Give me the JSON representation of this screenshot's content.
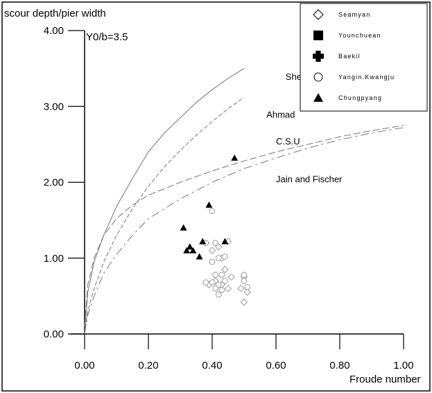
{
  "chart_data": {
    "type": "scatter",
    "ylabel": "scour depth/pier width",
    "xlabel": "Froude number",
    "annotation": "Y0/b=3.5",
    "xlim": [
      0,
      1.0
    ],
    "ylim": [
      0,
      4.0
    ],
    "x_ticks": [
      "0.00",
      "0.20",
      "0.40",
      "0.60",
      "0.80",
      "1.00"
    ],
    "y_ticks": [
      "0.00",
      "1.00",
      "2.00",
      "3.00",
      "4.00"
    ],
    "grid": false,
    "legend_position": "top-right",
    "legend": [
      {
        "name": "Seamyan",
        "marker": "diamond-open"
      },
      {
        "name": "Younchuean",
        "marker": "square-filled"
      },
      {
        "name": "Baekil",
        "marker": "cross-filled"
      },
      {
        "name": "Yangin.Kwangju",
        "marker": "circle-open"
      },
      {
        "name": "Chungpyang",
        "marker": "triangle-filled"
      }
    ],
    "curves": [
      {
        "name": "Shen",
        "points": [
          [
            0,
            0
          ],
          [
            0.01,
            0.55
          ],
          [
            0.03,
            0.95
          ],
          [
            0.06,
            1.3
          ],
          [
            0.1,
            1.68
          ],
          [
            0.15,
            2.05
          ],
          [
            0.2,
            2.4
          ],
          [
            0.25,
            2.65
          ],
          [
            0.3,
            2.85
          ],
          [
            0.35,
            3.05
          ],
          [
            0.4,
            3.22
          ],
          [
            0.45,
            3.37
          ],
          [
            0.5,
            3.5
          ]
        ],
        "label_at": [
          0.63,
          3.35
        ]
      },
      {
        "name": "Ahmad",
        "points": [
          [
            0,
            0
          ],
          [
            0.01,
            0.3
          ],
          [
            0.03,
            0.6
          ],
          [
            0.06,
            0.95
          ],
          [
            0.1,
            1.3
          ],
          [
            0.15,
            1.65
          ],
          [
            0.2,
            1.95
          ],
          [
            0.25,
            2.2
          ],
          [
            0.3,
            2.42
          ],
          [
            0.35,
            2.62
          ],
          [
            0.4,
            2.8
          ],
          [
            0.45,
            2.97
          ],
          [
            0.5,
            3.12
          ]
        ],
        "label_at": [
          0.57,
          2.85
        ]
      },
      {
        "name": "C.S.U",
        "points": [
          [
            0,
            0.1
          ],
          [
            0.01,
            0.65
          ],
          [
            0.03,
            1.0
          ],
          [
            0.06,
            1.3
          ],
          [
            0.1,
            1.52
          ],
          [
            0.15,
            1.7
          ],
          [
            0.2,
            1.83
          ],
          [
            0.3,
            2.0
          ],
          [
            0.4,
            2.15
          ],
          [
            0.5,
            2.28
          ],
          [
            0.6,
            2.4
          ],
          [
            0.7,
            2.5
          ],
          [
            0.8,
            2.6
          ],
          [
            0.9,
            2.68
          ],
          [
            1.0,
            2.75
          ]
        ],
        "label_at": [
          0.6,
          2.5
        ]
      },
      {
        "name": "Jain and Fischer",
        "points": [
          [
            0,
            0
          ],
          [
            0.01,
            0.25
          ],
          [
            0.03,
            0.5
          ],
          [
            0.06,
            0.8
          ],
          [
            0.1,
            1.05
          ],
          [
            0.15,
            1.3
          ],
          [
            0.2,
            1.52
          ],
          [
            0.3,
            1.78
          ],
          [
            0.4,
            2.0
          ],
          [
            0.5,
            2.18
          ],
          [
            0.6,
            2.32
          ],
          [
            0.7,
            2.45
          ],
          [
            0.8,
            2.56
          ],
          [
            0.9,
            2.65
          ],
          [
            1.0,
            2.72
          ]
        ],
        "label_at": [
          0.6,
          2.0
        ]
      }
    ],
    "series": [
      {
        "name": "Seamyan",
        "marker": "diamond-open",
        "points": [
          [
            0.38,
            1.2
          ],
          [
            0.4,
            1.1
          ],
          [
            0.42,
            1.15
          ],
          [
            0.43,
            1.0
          ],
          [
            0.45,
            1.22
          ],
          [
            0.44,
            0.85
          ],
          [
            0.46,
            0.75
          ],
          [
            0.41,
            0.7
          ],
          [
            0.43,
            0.65
          ],
          [
            0.45,
            0.6
          ],
          [
            0.39,
            0.65
          ],
          [
            0.5,
            0.75
          ],
          [
            0.49,
            0.6
          ],
          [
            0.51,
            0.55
          ],
          [
            0.5,
            0.42
          ]
        ]
      },
      {
        "name": "Yangin.Kwangju",
        "marker": "circle-open",
        "points": [
          [
            0.4,
            1.62
          ],
          [
            0.38,
            1.2
          ],
          [
            0.41,
            1.2
          ],
          [
            0.42,
            1.0
          ],
          [
            0.44,
            1.02
          ],
          [
            0.4,
            0.95
          ],
          [
            0.41,
            0.78
          ],
          [
            0.43,
            0.78
          ],
          [
            0.38,
            0.68
          ],
          [
            0.4,
            0.68
          ],
          [
            0.42,
            0.65
          ],
          [
            0.44,
            0.7
          ],
          [
            0.41,
            0.6
          ],
          [
            0.43,
            0.58
          ],
          [
            0.42,
            0.52
          ],
          [
            0.5,
            0.78
          ],
          [
            0.51,
            0.62
          ],
          [
            0.5,
            0.7
          ]
        ]
      },
      {
        "name": "Chungpyang",
        "marker": "triangle-filled",
        "points": [
          [
            0.47,
            2.32
          ],
          [
            0.39,
            1.7
          ],
          [
            0.31,
            1.4
          ],
          [
            0.37,
            1.22
          ],
          [
            0.44,
            1.22
          ],
          [
            0.33,
            1.15
          ],
          [
            0.32,
            1.1
          ],
          [
            0.34,
            1.1
          ],
          [
            0.36,
            1.02
          ]
        ]
      }
    ]
  }
}
